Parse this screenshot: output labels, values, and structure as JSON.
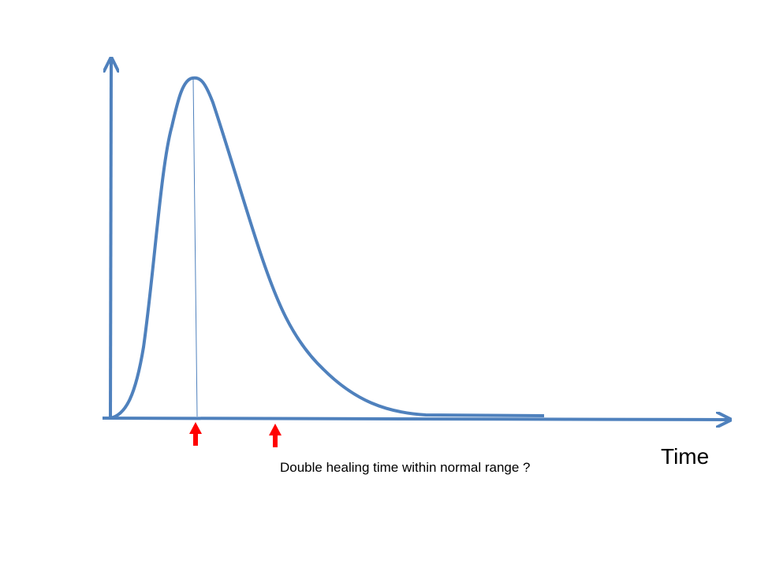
{
  "axis_label": "Time",
  "caption": "Double healing time within normal range ?"
}
